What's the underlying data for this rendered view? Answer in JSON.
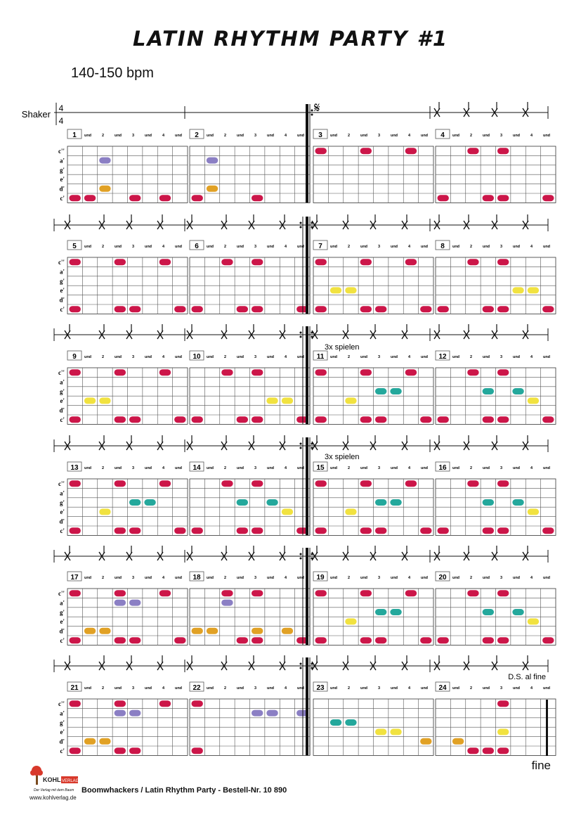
{
  "title": "LATIN RHYTHM PARTY #1",
  "tempo": "140-150 bpm",
  "shaker_label": "Shaker",
  "time_signature": {
    "top": "4",
    "bottom": "4"
  },
  "beat_labels": [
    "und",
    "2",
    "und",
    "3",
    "und",
    "4",
    "und"
  ],
  "note_labels": [
    "c''",
    "a'",
    "g'",
    "e'",
    "d'",
    "c'"
  ],
  "colors": {
    "c2": "#cc1649",
    "a": "#8b7fc4",
    "g": "#24a89c",
    "e": "#f1e240",
    "d": "#e1a125",
    "c": "#cc1649"
  },
  "annotations": {
    "repeat_text": "3x spielen",
    "ds_text": "D.S. al fine",
    "segno": "𝄋"
  },
  "fine": "fine",
  "footer": {
    "brand": "KOHL",
    "brand_tag": "VERLAG",
    "slogan": "Der Verlag mit dem Baum",
    "website": "www.kohlverlag.de",
    "text": "Boomwhackers / Latin Rhythm Party   -   Bestell-Nr. 10 890"
  },
  "measures": [
    {
      "n": "1",
      "notes": {
        "c2": [],
        "a": [
          2
        ],
        "g": [],
        "e": [],
        "d": [
          2
        ],
        "c": [
          0,
          1,
          4,
          6
        ]
      }
    },
    {
      "n": "2",
      "notes": {
        "c2": [],
        "a": [
          1
        ],
        "g": [],
        "e": [],
        "d": [
          1
        ],
        "c": [
          0,
          4
        ]
      }
    },
    {
      "n": "3",
      "notes": {
        "c2": [
          0,
          3,
          6
        ],
        "a": [],
        "g": [],
        "e": [],
        "d": [],
        "c": []
      }
    },
    {
      "n": "4",
      "notes": {
        "c2": [
          2,
          4
        ],
        "a": [],
        "g": [],
        "e": [],
        "d": [],
        "c": [
          0,
          3,
          4,
          7
        ]
      }
    },
    {
      "n": "5",
      "notes": {
        "c2": [
          0,
          3,
          6
        ],
        "a": [],
        "g": [],
        "e": [],
        "d": [],
        "c": [
          0,
          3,
          4,
          7
        ]
      }
    },
    {
      "n": "6",
      "notes": {
        "c2": [
          2,
          4
        ],
        "a": [],
        "g": [],
        "e": [],
        "d": [],
        "c": [
          0,
          3,
          4,
          7
        ]
      }
    },
    {
      "n": "7",
      "notes": {
        "c2": [
          0,
          3,
          6
        ],
        "a": [],
        "g": [],
        "e": [
          1,
          2
        ],
        "d": [],
        "c": [
          0,
          3,
          4,
          7
        ]
      }
    },
    {
      "n": "8",
      "notes": {
        "c2": [
          2,
          4
        ],
        "a": [],
        "g": [],
        "e": [
          5,
          6
        ],
        "d": [],
        "c": [
          0,
          3,
          4,
          7
        ]
      }
    },
    {
      "n": "9",
      "notes": {
        "c2": [
          0,
          3,
          6
        ],
        "a": [],
        "g": [],
        "e": [
          1,
          2
        ],
        "d": [],
        "c": [
          0,
          3,
          4,
          7
        ]
      }
    },
    {
      "n": "10",
      "notes": {
        "c2": [
          2,
          4
        ],
        "a": [],
        "g": [],
        "e": [
          5,
          6
        ],
        "d": [],
        "c": [
          0,
          3,
          4,
          7
        ]
      }
    },
    {
      "n": "11",
      "notes": {
        "c2": [
          0,
          3,
          6
        ],
        "a": [],
        "g": [
          4,
          5
        ],
        "e": [
          2
        ],
        "d": [],
        "c": [
          0,
          3,
          4,
          7
        ]
      }
    },
    {
      "n": "12",
      "notes": {
        "c2": [
          2,
          4
        ],
        "a": [],
        "g": [
          3,
          5
        ],
        "e": [
          6
        ],
        "d": [],
        "c": [
          0,
          3,
          4,
          7
        ]
      }
    },
    {
      "n": "13",
      "notes": {
        "c2": [
          0,
          3,
          6
        ],
        "a": [],
        "g": [
          4,
          5
        ],
        "e": [
          2
        ],
        "d": [],
        "c": [
          0,
          3,
          4,
          7
        ]
      }
    },
    {
      "n": "14",
      "notes": {
        "c2": [
          2,
          4
        ],
        "a": [],
        "g": [
          3,
          5
        ],
        "e": [
          6
        ],
        "d": [],
        "c": [
          0,
          3,
          4,
          7
        ]
      }
    },
    {
      "n": "15",
      "notes": {
        "c2": [
          0,
          3,
          6
        ],
        "a": [],
        "g": [
          4,
          5
        ],
        "e": [
          2
        ],
        "d": [],
        "c": [
          0,
          3,
          4,
          7
        ]
      }
    },
    {
      "n": "16",
      "notes": {
        "c2": [
          2,
          4
        ],
        "a": [],
        "g": [
          3,
          5
        ],
        "e": [
          6
        ],
        "d": [],
        "c": [
          0,
          3,
          4,
          7
        ]
      }
    },
    {
      "n": "17",
      "notes": {
        "c2": [
          0,
          3,
          6
        ],
        "a": [
          3,
          4
        ],
        "g": [],
        "e": [],
        "d": [
          1,
          2
        ],
        "c": [
          0,
          3,
          4,
          7
        ]
      }
    },
    {
      "n": "18",
      "notes": {
        "c2": [
          2,
          4
        ],
        "a": [
          2
        ],
        "g": [],
        "e": [],
        "d": [
          0,
          1,
          4,
          6
        ],
        "c": [
          3,
          4,
          7
        ]
      }
    },
    {
      "n": "19",
      "notes": {
        "c2": [
          0,
          3,
          6
        ],
        "a": [],
        "g": [
          4,
          5
        ],
        "e": [
          2
        ],
        "d": [],
        "c": [
          0,
          3,
          4,
          7
        ]
      }
    },
    {
      "n": "20",
      "notes": {
        "c2": [
          2,
          4
        ],
        "a": [],
        "g": [
          3,
          5
        ],
        "e": [
          6
        ],
        "d": [],
        "c": [
          0,
          3,
          4,
          7
        ]
      }
    },
    {
      "n": "21",
      "notes": {
        "c2": [
          0,
          3,
          6
        ],
        "a": [
          3,
          4
        ],
        "g": [],
        "e": [],
        "d": [
          1,
          2
        ],
        "c": [
          0,
          3,
          4
        ]
      }
    },
    {
      "n": "22",
      "notes": {
        "c2": [
          0
        ],
        "a": [
          4,
          5,
          7
        ],
        "g": [],
        "e": [],
        "d": [],
        "c": [
          0
        ]
      }
    },
    {
      "n": "23",
      "notes": {
        "c2": [],
        "a": [],
        "g": [
          1,
          2
        ],
        "e": [
          4,
          5
        ],
        "d": [
          7
        ],
        "c": []
      }
    },
    {
      "n": "24",
      "notes": {
        "c2": [
          4
        ],
        "a": [],
        "g": [],
        "e": [
          4
        ],
        "d": [
          1
        ],
        "c": [
          2,
          3,
          4
        ]
      }
    }
  ]
}
